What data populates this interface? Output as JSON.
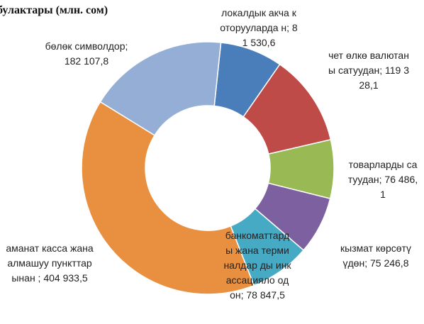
{
  "chart_data": {
    "type": "donut",
    "title": "булактары (млн. сом)",
    "categories": [
      "локалдык акча которуулардан",
      "чет өлкө валютаны сатуудан",
      "товарларды сатуудан",
      "кызмат көрсөтүүдөн",
      "банкоматтарды жана терминалдарды инкассациялоодон",
      "аманат касса жана алмашуу пункттарынан",
      "бөлөк символдор"
    ],
    "labels": [
      "локалдык акча которууларда н; 81 530,6",
      "чет өлкө валютаны сатуудан; 119 328,1",
      "товарларды сатуудан; 76 486,1",
      "кызмат көрсөтүүдөн; 75 246,8",
      "банкоматтард ы жана терминалдар ды инкассациялo одон; 78 847,5",
      "аманат касса жана алмашуу пункттарынан ; 404 933,5",
      "бөлөк символдор; 182 107,8"
    ],
    "values": [
      81530.6,
      119328.1,
      76486.1,
      75246.8,
      78847.5,
      404933.5,
      182107.8
    ],
    "colors": [
      "#4a7ebb",
      "#be4b48",
      "#98b954",
      "#7d60a0",
      "#46aac5",
      "#e8903f",
      "#95aed6"
    ]
  }
}
